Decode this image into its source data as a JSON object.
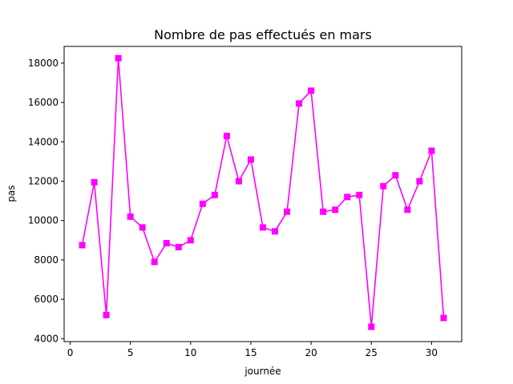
{
  "chart_data": {
    "type": "line",
    "title": "Nombre de pas effectués en mars",
    "xlabel": "journée",
    "ylabel": "pas",
    "xlim": [
      -0.5,
      32.5
    ],
    "ylim": [
      3850,
      18850
    ],
    "x_ticks": [
      0,
      5,
      10,
      15,
      20,
      25,
      30
    ],
    "y_ticks": [
      4000,
      6000,
      8000,
      10000,
      12000,
      14000,
      16000,
      18000
    ],
    "grid": false,
    "series": [
      {
        "color": "#ff00ff",
        "marker": "square",
        "x": [
          1,
          2,
          3,
          4,
          5,
          6,
          7,
          8,
          9,
          10,
          11,
          12,
          13,
          14,
          15,
          16,
          17,
          18,
          19,
          20,
          21,
          22,
          23,
          24,
          25,
          26,
          27,
          28,
          29,
          30,
          31
        ],
        "values": [
          8750,
          11950,
          5200,
          18250,
          10200,
          9650,
          7900,
          8850,
          8650,
          9000,
          10850,
          11300,
          14300,
          12000,
          13100,
          9650,
          9450,
          10450,
          15950,
          16600,
          10450,
          10550,
          11200,
          11300,
          4600,
          11750,
          12300,
          10550,
          12000,
          13550,
          5050
        ]
      }
    ]
  }
}
